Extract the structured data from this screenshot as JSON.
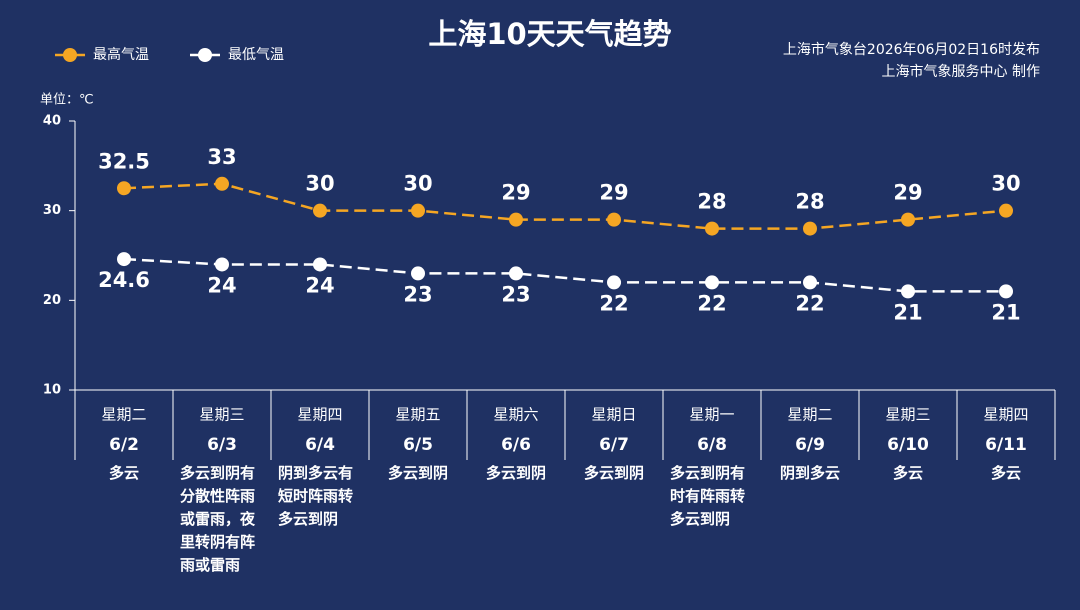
{
  "chart_data": {
    "type": "line",
    "title": "上海10天天气趋势",
    "source": [
      "上海市气象台2026年06月02日16时发布",
      "上海市气象服务中心 制作"
    ],
    "unit_label": "单位：℃",
    "categories": [
      "6/2",
      "6/3",
      "6/4",
      "6/5",
      "6/6",
      "6/7",
      "6/8",
      "6/9",
      "6/10",
      "6/11"
    ],
    "weekdays": [
      "星期二",
      "星期三",
      "星期四",
      "星期五",
      "星期六",
      "星期日",
      "星期一",
      "星期二",
      "星期三",
      "星期四"
    ],
    "weekday_colors": [
      "#ffffff",
      "#ffffff",
      "#ffffff",
      "#ffffff",
      "#f5a623",
      "#f5a623",
      "#ffffff",
      "#ffffff",
      "#ffffff",
      "#ffffff"
    ],
    "weather": [
      "多云",
      "多云到阴有分散性阵雨或雷雨，夜里转阴有阵雨或雷雨",
      "阴到多云有短时阵雨转多云到阴",
      "多云到阴",
      "多云到阴",
      "多云到阴",
      "多云到阴有时有阵雨转多云到阴",
      "阴到多云",
      "多云",
      "多云"
    ],
    "series": [
      {
        "name": "最高气温",
        "color": "#f5a623",
        "values": [
          32.5,
          33,
          30,
          30,
          29,
          29,
          28,
          28,
          29,
          30
        ],
        "label_position": "above"
      },
      {
        "name": "最低气温",
        "color": "#ffffff",
        "values": [
          24.6,
          24,
          24,
          23,
          23,
          22,
          22,
          22,
          21,
          21
        ],
        "label_position": "below"
      }
    ],
    "ylim": [
      10,
      40
    ],
    "yticks": [
      10,
      20,
      30,
      40
    ],
    "legend": "top-left"
  }
}
